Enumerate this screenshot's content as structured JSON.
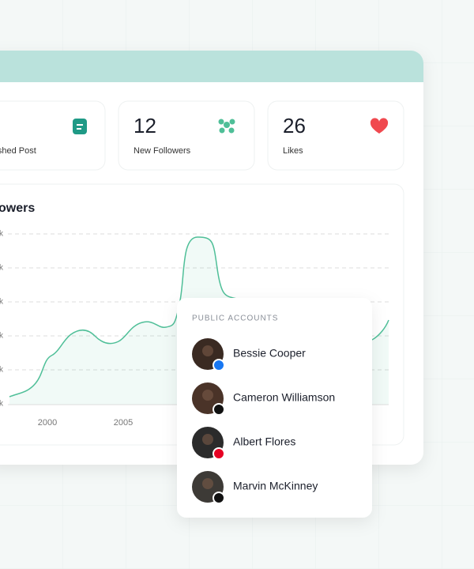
{
  "stats": [
    {
      "label": "lished Post"
    },
    {
      "value": "12",
      "label": "New Followers"
    },
    {
      "value": "26",
      "label": "Likes"
    }
  ],
  "chart": {
    "title": "owers",
    "y_tick_labels": [
      "k",
      "k",
      "k",
      "k",
      "k",
      "k"
    ],
    "x_tick_labels": [
      "2000",
      "2005"
    ]
  },
  "accounts": {
    "title": "PUBLIC ACCOUNTS",
    "items": [
      {
        "name": "Bessie Cooper"
      },
      {
        "name": "Cameron Williamson"
      },
      {
        "name": "Albert Flores"
      },
      {
        "name": "Marvin McKinney"
      }
    ]
  }
}
